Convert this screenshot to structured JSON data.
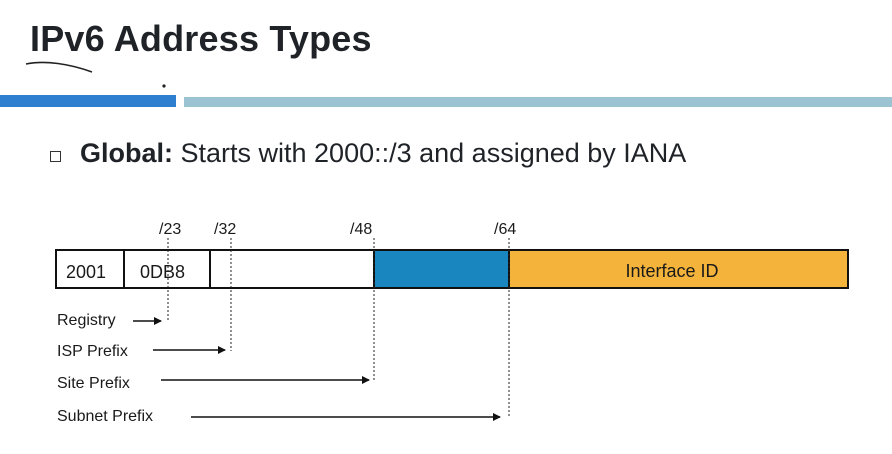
{
  "slide": {
    "title": "IPv6 Address Types",
    "bullet": {
      "label": "Global:",
      "text": " Starts with 2000::/3 and assigned by IANA"
    }
  },
  "diagram": {
    "prefix_markers": [
      "/23",
      "/32",
      "/48",
      "/64"
    ],
    "fields": [
      {
        "text": "2001",
        "color": "#ffffff"
      },
      {
        "text": "0DB8",
        "color": "#ffffff"
      },
      {
        "text": "",
        "color": "#ffffff"
      },
      {
        "text": "",
        "color": "#1a86c0"
      },
      {
        "text": "Interface ID",
        "color": "#f4b33a"
      }
    ],
    "arrow_labels": [
      "Registry",
      "ISP Prefix",
      "Site Prefix",
      "Subnet Prefix"
    ]
  },
  "colors": {
    "accent_dark": "#2e7fd0",
    "accent_light": "#9cc3d2",
    "subnet_blue": "#1a86c0",
    "interface_orange": "#f4b33a"
  }
}
